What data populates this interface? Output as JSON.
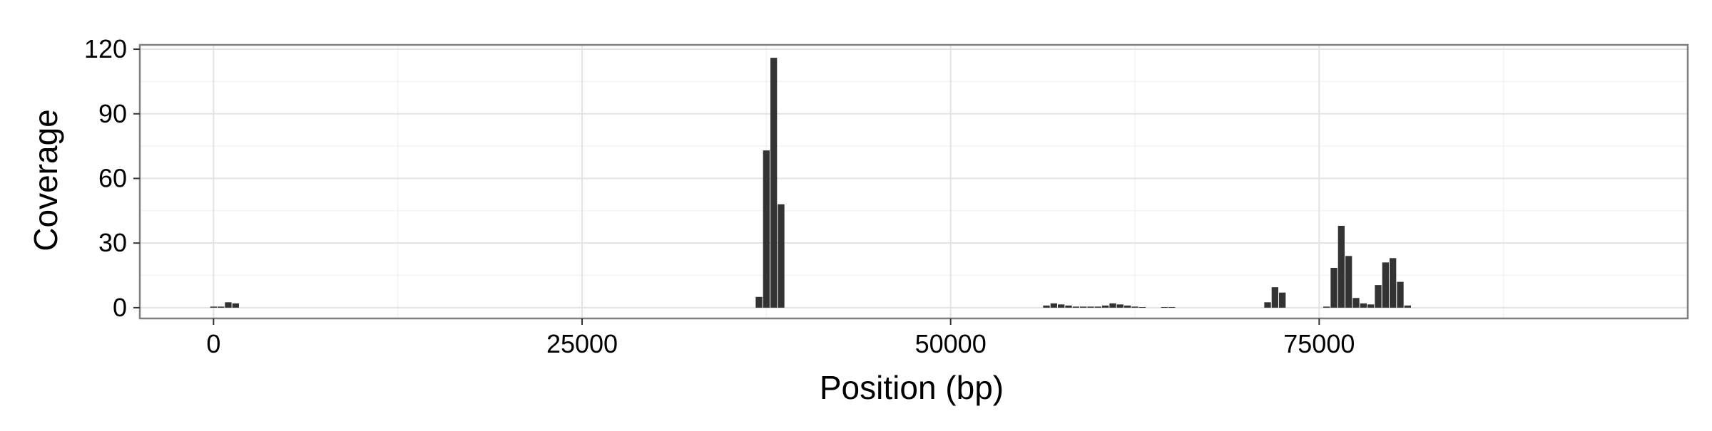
{
  "chart_data": {
    "type": "bar",
    "xlabel": "Position (bp)",
    "ylabel": "Coverage",
    "xlim": [
      -5000,
      100000
    ],
    "ylim": [
      -5,
      122
    ],
    "x_ticks": [
      0,
      25000,
      50000,
      75000
    ],
    "y_ticks": [
      0,
      30,
      60,
      90,
      120
    ],
    "grid": true,
    "bar_width": 450,
    "colors": {
      "bar": "#333333",
      "panel_border": "#7f7f7f",
      "grid_major": "#e3e3e3",
      "grid_minor": "#f3f3f3"
    },
    "series": [
      {
        "x": [
          0,
          500,
          1000,
          1500,
          37000,
          37500,
          38000,
          38500,
          56500,
          57000,
          57500,
          58000,
          58500,
          59000,
          59500,
          60000,
          60500,
          61000,
          61500,
          62000,
          62500,
          63000,
          64500,
          65000,
          71500,
          72000,
          72500,
          75500,
          76000,
          76500,
          77000,
          77500,
          78000,
          78500,
          79000,
          79500,
          80000,
          80500,
          81000
        ],
        "values": [
          0.5,
          0.5,
          2.5,
          2,
          5,
          73,
          116,
          48,
          1,
          2,
          1.5,
          1,
          0.5,
          0.5,
          0.5,
          0.5,
          1,
          2,
          1.5,
          1,
          0.5,
          0.3,
          0.3,
          0.3,
          2.5,
          9.5,
          7,
          0.5,
          18.5,
          38,
          24,
          4.5,
          2,
          1.5,
          10.5,
          21,
          23,
          12,
          1
        ]
      }
    ]
  }
}
